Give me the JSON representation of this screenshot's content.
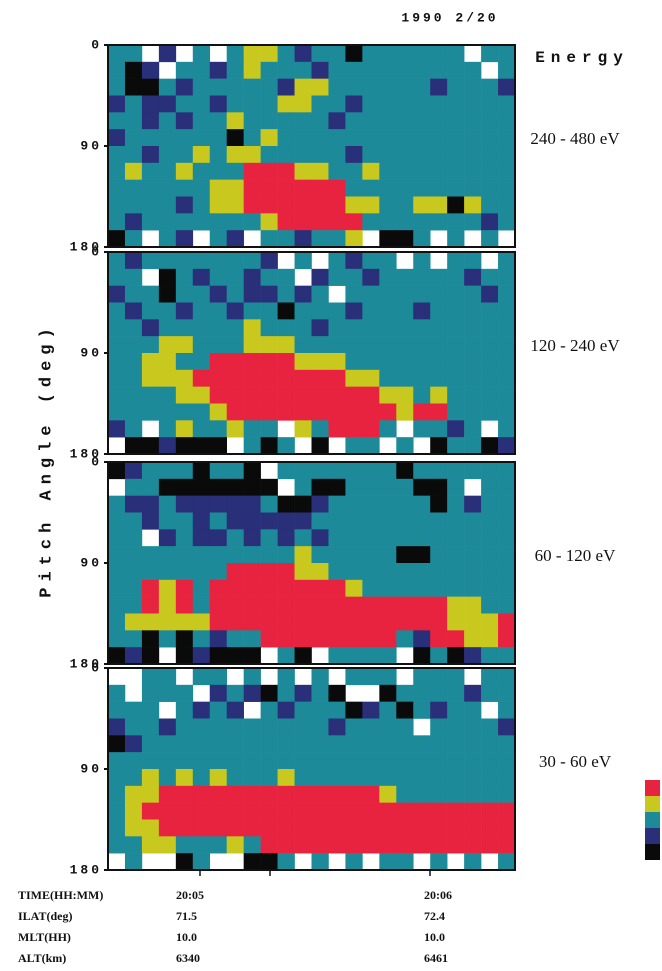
{
  "chart_data": {
    "type": "heatmap",
    "date": "1990 2/20",
    "y_axis_label": "Pitch Angle (deg)",
    "energy_header": "Energy",
    "ylim": [
      0,
      180
    ],
    "yticks": [
      0,
      90,
      180
    ],
    "colorbar": {
      "levels": [
        5,
        4,
        3,
        2,
        1
      ],
      "colors": [
        "#e8233f",
        "#c8c81e",
        "#1d8a9a",
        "#2a2f7a",
        "#0a0a0a"
      ]
    },
    "panels": [
      {
        "label": "240 - 480 eV",
        "values": [
          [
            3,
            3,
            null,
            2,
            null,
            3,
            null,
            3,
            4,
            4,
            3,
            2,
            3,
            3,
            1,
            3,
            3,
            3,
            3,
            3,
            3,
            null,
            3,
            3
          ],
          [
            3,
            1,
            2,
            null,
            3,
            3,
            2,
            3,
            4,
            3,
            3,
            3,
            2,
            3,
            3,
            3,
            3,
            3,
            3,
            3,
            3,
            3,
            null,
            3
          ],
          [
            3,
            1,
            1,
            3,
            2,
            3,
            3,
            3,
            3,
            3,
            2,
            4,
            4,
            3,
            3,
            3,
            3,
            3,
            3,
            2,
            3,
            3,
            3,
            2
          ],
          [
            2,
            3,
            2,
            2,
            3,
            3,
            2,
            3,
            3,
            3,
            4,
            4,
            3,
            3,
            2,
            3,
            3,
            3,
            3,
            3,
            3,
            3,
            3,
            3
          ],
          [
            3,
            3,
            2,
            3,
            2,
            3,
            3,
            4,
            3,
            3,
            3,
            3,
            3,
            2,
            3,
            3,
            3,
            3,
            3,
            3,
            3,
            3,
            3,
            3
          ],
          [
            2,
            3,
            3,
            3,
            3,
            3,
            3,
            1,
            3,
            4,
            3,
            3,
            3,
            3,
            3,
            3,
            3,
            3,
            3,
            3,
            3,
            3,
            3,
            3
          ],
          [
            3,
            3,
            2,
            3,
            3,
            4,
            3,
            4,
            4,
            3,
            3,
            3,
            3,
            3,
            2,
            3,
            3,
            3,
            3,
            3,
            3,
            3,
            3,
            3
          ],
          [
            3,
            4,
            3,
            3,
            4,
            3,
            3,
            3,
            5,
            5,
            5,
            4,
            4,
            3,
            3,
            4,
            3,
            3,
            3,
            3,
            3,
            3,
            3,
            3
          ],
          [
            3,
            3,
            3,
            3,
            3,
            3,
            4,
            4,
            5,
            5,
            5,
            5,
            5,
            5,
            3,
            3,
            3,
            3,
            3,
            3,
            3,
            3,
            3,
            3
          ],
          [
            3,
            3,
            3,
            3,
            2,
            3,
            4,
            4,
            5,
            5,
            5,
            5,
            5,
            5,
            4,
            4,
            3,
            3,
            4,
            4,
            1,
            4,
            3,
            3
          ],
          [
            3,
            2,
            3,
            3,
            3,
            3,
            3,
            3,
            3,
            4,
            5,
            5,
            5,
            5,
            5,
            3,
            3,
            3,
            3,
            3,
            3,
            3,
            2,
            3
          ],
          [
            1,
            3,
            null,
            3,
            2,
            null,
            3,
            2,
            null,
            3,
            3,
            2,
            3,
            3,
            4,
            null,
            1,
            1,
            3,
            null,
            3,
            null,
            3,
            null
          ]
        ]
      },
      {
        "label": "120 - 240 eV",
        "values": [
          [
            3,
            2,
            3,
            3,
            3,
            3,
            3,
            3,
            3,
            2,
            null,
            3,
            null,
            3,
            2,
            3,
            3,
            null,
            3,
            null,
            3,
            3,
            null,
            3
          ],
          [
            3,
            3,
            null,
            1,
            3,
            2,
            3,
            3,
            2,
            3,
            3,
            null,
            2,
            3,
            3,
            2,
            3,
            3,
            3,
            3,
            3,
            2,
            3,
            3
          ],
          [
            2,
            3,
            3,
            1,
            3,
            3,
            2,
            3,
            2,
            2,
            3,
            2,
            3,
            null,
            3,
            3,
            3,
            3,
            3,
            3,
            3,
            3,
            2,
            3
          ],
          [
            3,
            2,
            3,
            3,
            2,
            3,
            3,
            2,
            3,
            3,
            1,
            3,
            3,
            3,
            2,
            3,
            3,
            3,
            2,
            3,
            3,
            3,
            3,
            3
          ],
          [
            3,
            3,
            2,
            3,
            3,
            3,
            3,
            3,
            4,
            3,
            3,
            3,
            2,
            3,
            3,
            3,
            3,
            3,
            3,
            3,
            3,
            3,
            3,
            3
          ],
          [
            3,
            3,
            3,
            4,
            4,
            3,
            3,
            3,
            4,
            4,
            4,
            3,
            3,
            3,
            3,
            3,
            3,
            3,
            3,
            3,
            3,
            3,
            3,
            3
          ],
          [
            3,
            3,
            4,
            4,
            3,
            3,
            5,
            5,
            5,
            5,
            5,
            4,
            4,
            4,
            3,
            3,
            3,
            3,
            3,
            3,
            3,
            3,
            3,
            3
          ],
          [
            3,
            3,
            4,
            4,
            4,
            5,
            5,
            5,
            5,
            5,
            5,
            5,
            5,
            5,
            4,
            4,
            3,
            3,
            3,
            3,
            3,
            3,
            3,
            3
          ],
          [
            3,
            3,
            3,
            3,
            4,
            4,
            5,
            5,
            5,
            5,
            5,
            5,
            5,
            5,
            5,
            5,
            4,
            4,
            3,
            4,
            3,
            3,
            3,
            3
          ],
          [
            3,
            3,
            3,
            3,
            3,
            3,
            4,
            5,
            5,
            5,
            5,
            5,
            5,
            5,
            5,
            5,
            5,
            4,
            5,
            5,
            3,
            3,
            3,
            3
          ],
          [
            2,
            3,
            null,
            3,
            4,
            3,
            3,
            4,
            3,
            3,
            null,
            4,
            3,
            5,
            5,
            5,
            3,
            null,
            3,
            3,
            2,
            3,
            null,
            3
          ],
          [
            null,
            1,
            1,
            2,
            1,
            1,
            1,
            null,
            3,
            1,
            3,
            null,
            1,
            null,
            3,
            3,
            null,
            3,
            null,
            1,
            3,
            3,
            1,
            2
          ]
        ]
      },
      {
        "label": "60 - 120 eV",
        "values": [
          [
            1,
            2,
            3,
            3,
            3,
            1,
            3,
            3,
            1,
            null,
            3,
            3,
            3,
            3,
            3,
            3,
            3,
            1,
            3,
            3,
            3,
            3,
            3,
            3
          ],
          [
            null,
            3,
            3,
            1,
            1,
            1,
            1,
            1,
            1,
            1,
            null,
            3,
            1,
            1,
            3,
            3,
            3,
            3,
            1,
            1,
            3,
            null,
            3,
            3
          ],
          [
            3,
            2,
            2,
            3,
            2,
            2,
            2,
            2,
            2,
            3,
            1,
            1,
            2,
            3,
            3,
            3,
            3,
            3,
            3,
            1,
            3,
            2,
            3,
            3
          ],
          [
            3,
            3,
            2,
            3,
            3,
            2,
            3,
            2,
            2,
            2,
            2,
            2,
            3,
            3,
            3,
            3,
            3,
            3,
            3,
            3,
            3,
            3,
            3,
            3
          ],
          [
            3,
            3,
            null,
            2,
            3,
            2,
            2,
            3,
            2,
            3,
            2,
            3,
            2,
            3,
            3,
            3,
            3,
            3,
            3,
            3,
            3,
            3,
            3,
            3
          ],
          [
            3,
            3,
            3,
            3,
            3,
            3,
            3,
            3,
            3,
            3,
            3,
            4,
            3,
            3,
            3,
            3,
            3,
            1,
            1,
            3,
            3,
            3,
            3,
            3
          ],
          [
            3,
            3,
            3,
            3,
            3,
            3,
            3,
            5,
            5,
            5,
            5,
            4,
            4,
            3,
            3,
            3,
            3,
            3,
            3,
            3,
            3,
            3,
            3,
            3
          ],
          [
            3,
            3,
            5,
            4,
            5,
            3,
            5,
            5,
            5,
            5,
            5,
            5,
            5,
            5,
            4,
            3,
            3,
            3,
            3,
            3,
            3,
            3,
            3,
            3
          ],
          [
            3,
            3,
            5,
            4,
            5,
            3,
            5,
            5,
            5,
            5,
            5,
            5,
            5,
            5,
            5,
            5,
            5,
            5,
            5,
            5,
            4,
            4,
            3,
            3
          ],
          [
            3,
            4,
            4,
            4,
            4,
            4,
            5,
            5,
            5,
            5,
            5,
            5,
            5,
            5,
            5,
            5,
            5,
            5,
            5,
            5,
            4,
            4,
            4,
            5
          ],
          [
            3,
            3,
            1,
            3,
            1,
            3,
            2,
            3,
            3,
            5,
            5,
            5,
            5,
            5,
            5,
            5,
            5,
            3,
            2,
            5,
            5,
            4,
            4,
            5
          ],
          [
            1,
            2,
            1,
            null,
            1,
            2,
            1,
            1,
            1,
            null,
            3,
            1,
            null,
            3,
            3,
            3,
            3,
            null,
            1,
            3,
            1,
            2,
            3,
            3
          ]
        ]
      },
      {
        "label": "30 - 60 eV",
        "values": [
          [
            null,
            null,
            3,
            3,
            null,
            3,
            3,
            null,
            3,
            null,
            3,
            null,
            3,
            null,
            3,
            3,
            3,
            null,
            3,
            3,
            3,
            null,
            3,
            3
          ],
          [
            3,
            null,
            3,
            3,
            3,
            null,
            2,
            3,
            2,
            1,
            3,
            2,
            3,
            1,
            null,
            null,
            1,
            3,
            3,
            3,
            3,
            2,
            3,
            3
          ],
          [
            3,
            3,
            3,
            null,
            3,
            2,
            3,
            2,
            null,
            3,
            2,
            3,
            3,
            3,
            1,
            2,
            3,
            1,
            3,
            2,
            3,
            3,
            null,
            3
          ],
          [
            2,
            3,
            3,
            2,
            3,
            3,
            3,
            3,
            3,
            3,
            3,
            3,
            3,
            2,
            3,
            3,
            3,
            3,
            null,
            3,
            3,
            3,
            3,
            2
          ],
          [
            1,
            2,
            3,
            3,
            3,
            3,
            3,
            3,
            3,
            3,
            3,
            3,
            3,
            3,
            3,
            3,
            3,
            3,
            3,
            3,
            3,
            3,
            3,
            3
          ],
          [
            3,
            3,
            3,
            3,
            3,
            3,
            3,
            3,
            3,
            3,
            3,
            3,
            3,
            3,
            3,
            3,
            3,
            3,
            3,
            3,
            3,
            3,
            3,
            3
          ],
          [
            3,
            3,
            4,
            3,
            4,
            3,
            4,
            3,
            3,
            3,
            4,
            3,
            3,
            3,
            3,
            3,
            3,
            3,
            3,
            3,
            3,
            3,
            3,
            3
          ],
          [
            3,
            4,
            4,
            5,
            5,
            5,
            5,
            5,
            5,
            5,
            5,
            5,
            5,
            5,
            5,
            5,
            4,
            3,
            3,
            3,
            3,
            3,
            3,
            3
          ],
          [
            3,
            4,
            5,
            5,
            5,
            5,
            5,
            5,
            5,
            5,
            5,
            5,
            5,
            5,
            5,
            5,
            5,
            5,
            5,
            5,
            5,
            5,
            5,
            5
          ],
          [
            3,
            4,
            4,
            5,
            5,
            5,
            5,
            5,
            5,
            5,
            5,
            5,
            5,
            5,
            5,
            5,
            5,
            5,
            5,
            5,
            5,
            5,
            5,
            5
          ],
          [
            3,
            3,
            4,
            4,
            3,
            3,
            3,
            4,
            3,
            5,
            5,
            5,
            5,
            5,
            5,
            5,
            5,
            5,
            5,
            5,
            5,
            5,
            5,
            5
          ],
          [
            null,
            3,
            null,
            null,
            1,
            3,
            null,
            null,
            1,
            1,
            3,
            null,
            3,
            null,
            3,
            null,
            3,
            3,
            null,
            3,
            null,
            3,
            null,
            3
          ]
        ]
      }
    ],
    "footer": [
      {
        "label": "TIME(HH:MM)",
        "values": [
          "20:05",
          "20:06"
        ]
      },
      {
        "label": "ILAT(deg)",
        "values": [
          "71.5",
          "72.4"
        ]
      },
      {
        "label": "MLT(HH)",
        "values": [
          "10.0",
          "10.0"
        ]
      },
      {
        "label": "ALT(km)",
        "values": [
          "6340",
          "6461"
        ]
      }
    ]
  }
}
